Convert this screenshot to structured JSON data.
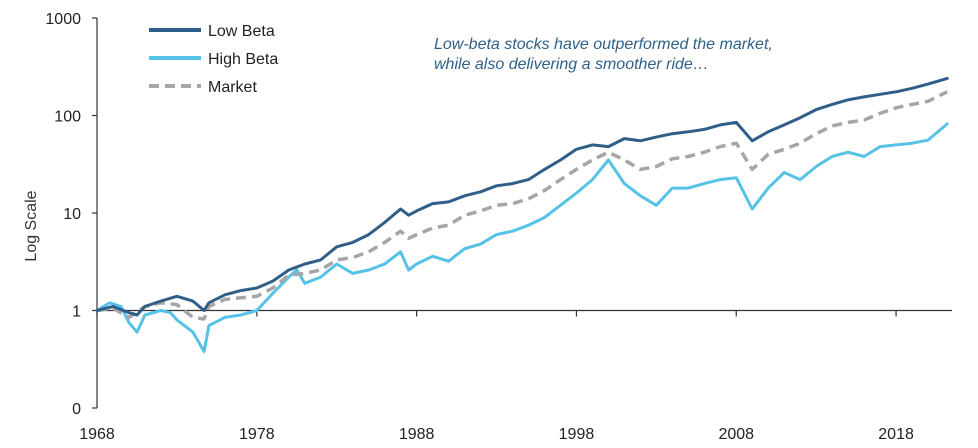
{
  "chart_data": {
    "type": "line",
    "ylabel": "Log Scale",
    "xlabel": "",
    "y_scale": "log",
    "yticks": [
      0.1,
      1,
      10,
      100,
      1000
    ],
    "ytick_labels": [
      "0",
      "1",
      "10",
      "100",
      "1000"
    ],
    "xticks": [
      1968,
      1978,
      1988,
      1998,
      2008,
      2018
    ],
    "xtick_labels": [
      "1968",
      "1978",
      "1988",
      "1998",
      "2008",
      "2018"
    ],
    "xlim": [
      1968,
      2021.5
    ],
    "ylim": [
      0.1,
      1000
    ],
    "legend_position": "top-left",
    "annotation": [
      "Low-beta stocks have outperformed the market,",
      "while also delivering a smoother ride…"
    ],
    "series": [
      {
        "name": "Low Beta",
        "color": "#2f5f88",
        "style": "solid",
        "x": [
          1968,
          1969,
          1970,
          1970.5,
          1971,
          1972,
          1973,
          1974,
          1974.7,
          1975,
          1976,
          1977,
          1978,
          1979,
          1980,
          1981,
          1982,
          1983,
          1984,
          1985,
          1986,
          1987,
          1987.5,
          1988,
          1989,
          1990,
          1991,
          1992,
          1993,
          1994,
          1995,
          1996,
          1997,
          1998,
          1999,
          2000,
          2001,
          2002,
          2003,
          2004,
          2005,
          2006,
          2007,
          2008,
          2009,
          2010,
          2011,
          2012,
          2013,
          2014,
          2015,
          2016,
          2017,
          2018,
          2019,
          2020,
          2021.2
        ],
        "y": [
          1.0,
          1.1,
          0.95,
          0.9,
          1.1,
          1.25,
          1.4,
          1.25,
          1.0,
          1.2,
          1.45,
          1.6,
          1.7,
          2.0,
          2.6,
          3.0,
          3.3,
          4.5,
          5.0,
          6.0,
          8.0,
          11.0,
          9.5,
          10.5,
          12.5,
          13.0,
          15.0,
          16.5,
          19.0,
          20.0,
          22.0,
          28.0,
          35.0,
          45.0,
          50.0,
          48.0,
          58.0,
          55.0,
          60.0,
          65.0,
          68.0,
          72.0,
          80.0,
          85.0,
          55.0,
          68.0,
          80.0,
          95.0,
          115.0,
          130.0,
          145.0,
          155.0,
          165.0,
          175.0,
          190.0,
          210.0,
          240.0
        ]
      },
      {
        "name": "High Beta",
        "color": "#56c3e6",
        "style": "solid",
        "x": [
          1968,
          1968.8,
          1969.5,
          1970,
          1970.5,
          1971,
          1972,
          1972.6,
          1973,
          1974,
          1974.7,
          1975,
          1976,
          1977,
          1978,
          1979,
          1980,
          1980.5,
          1981,
          1982,
          1983,
          1984,
          1985,
          1986,
          1987,
          1987.5,
          1988,
          1989,
          1990,
          1991,
          1992,
          1993,
          1994,
          1995,
          1996,
          1997,
          1998,
          1999,
          2000,
          2001,
          2002,
          2003,
          2004,
          2005,
          2006,
          2007,
          2008,
          2009,
          2010,
          2011,
          2012,
          2013,
          2014,
          2015,
          2016,
          2017,
          2018,
          2019,
          2020,
          2021.2
        ],
        "y": [
          1.0,
          1.2,
          1.1,
          0.75,
          0.6,
          0.9,
          1.0,
          0.95,
          0.8,
          0.6,
          0.38,
          0.7,
          0.85,
          0.9,
          1.0,
          1.5,
          2.2,
          2.6,
          1.9,
          2.2,
          3.0,
          2.4,
          2.6,
          3.0,
          4.0,
          2.6,
          3.0,
          3.6,
          3.2,
          4.3,
          4.8,
          6.0,
          6.5,
          7.5,
          9.0,
          12.0,
          16.0,
          22.0,
          35.0,
          20.0,
          15.0,
          12.0,
          18.0,
          18.0,
          20.0,
          22.0,
          23.0,
          11.0,
          18.0,
          26.0,
          22.0,
          30.0,
          38.0,
          42.0,
          38.0,
          48.0,
          50.0,
          52.0,
          56.0,
          82.0
        ]
      },
      {
        "name": "Market",
        "color": "#a6a6a6",
        "style": "dashed",
        "x": [
          1968,
          1969,
          1970,
          1971,
          1972,
          1973,
          1974,
          1974.7,
          1975,
          1976,
          1977,
          1978,
          1979,
          1980,
          1981,
          1982,
          1983,
          1984,
          1985,
          1986,
          1987,
          1987.5,
          1988,
          1989,
          1990,
          1991,
          1992,
          1993,
          1994,
          1995,
          1996,
          1997,
          1998,
          1999,
          2000,
          2001,
          2002,
          2003,
          2004,
          2005,
          2006,
          2007,
          2008,
          2009,
          2010,
          2011,
          2012,
          2013,
          2014,
          2015,
          2016,
          2017,
          2018,
          2019,
          2020,
          2021.2
        ],
        "y": [
          1.0,
          1.05,
          0.85,
          1.1,
          1.2,
          1.15,
          0.85,
          0.82,
          1.1,
          1.3,
          1.35,
          1.4,
          1.7,
          2.3,
          2.4,
          2.6,
          3.3,
          3.5,
          4.0,
          5.0,
          6.5,
          5.5,
          6.0,
          7.0,
          7.5,
          9.5,
          10.5,
          12.0,
          12.5,
          14.0,
          17.0,
          22.0,
          28.0,
          35.0,
          42.0,
          35.0,
          28.0,
          30.0,
          36.0,
          38.0,
          42.0,
          48.0,
          52.0,
          28.0,
          40.0,
          45.0,
          52.0,
          65.0,
          78.0,
          85.0,
          90.0,
          105.0,
          120.0,
          130.0,
          140.0,
          175.0
        ]
      }
    ]
  }
}
